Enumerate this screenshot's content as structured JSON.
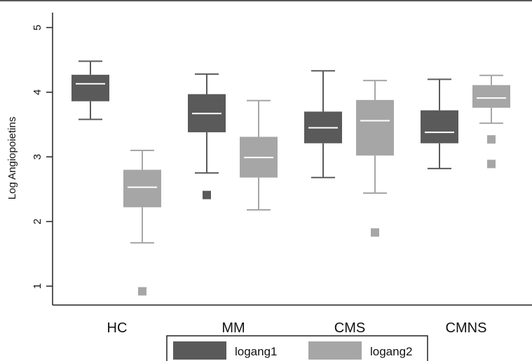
{
  "chart_data": {
    "type": "box",
    "ylabel": "Log Angiopoietins",
    "ylim": [
      0.75,
      5.2
    ],
    "yticks": [
      "1",
      "2",
      "3",
      "4",
      "5"
    ],
    "categories": [
      "HC",
      "MM",
      "CMS",
      "CMNS"
    ],
    "grid": false,
    "legend_position": "bottom-center",
    "series": [
      {
        "name": "logang1",
        "color": "#5a5a5a",
        "boxes": [
          {
            "whisker_low": 3.58,
            "q1": 3.86,
            "median": 4.13,
            "q3": 4.27,
            "whisker_high": 4.48,
            "outliers": []
          },
          {
            "whisker_low": 2.75,
            "q1": 3.38,
            "median": 3.67,
            "q3": 3.97,
            "whisker_high": 4.28,
            "outliers": [
              2.41
            ]
          },
          {
            "whisker_low": 2.68,
            "q1": 3.21,
            "median": 3.45,
            "q3": 3.7,
            "whisker_high": 4.33,
            "outliers": []
          },
          {
            "whisker_low": 2.82,
            "q1": 3.21,
            "median": 3.38,
            "q3": 3.72,
            "whisker_high": 4.2,
            "outliers": []
          }
        ]
      },
      {
        "name": "logang2",
        "color": "#a6a6a6",
        "boxes": [
          {
            "whisker_low": 1.67,
            "q1": 2.22,
            "median": 2.53,
            "q3": 2.8,
            "whisker_high": 3.1,
            "outliers": [
              0.92
            ]
          },
          {
            "whisker_low": 2.18,
            "q1": 2.68,
            "median": 2.99,
            "q3": 3.31,
            "whisker_high": 3.87,
            "outliers": []
          },
          {
            "whisker_low": 2.44,
            "q1": 3.02,
            "median": 3.56,
            "q3": 3.88,
            "whisker_high": 4.18,
            "outliers": [
              1.83
            ]
          },
          {
            "whisker_low": 3.52,
            "q1": 3.76,
            "median": 3.91,
            "q3": 4.11,
            "whisker_high": 4.26,
            "outliers": [
              3.27,
              2.89
            ]
          }
        ]
      }
    ]
  }
}
